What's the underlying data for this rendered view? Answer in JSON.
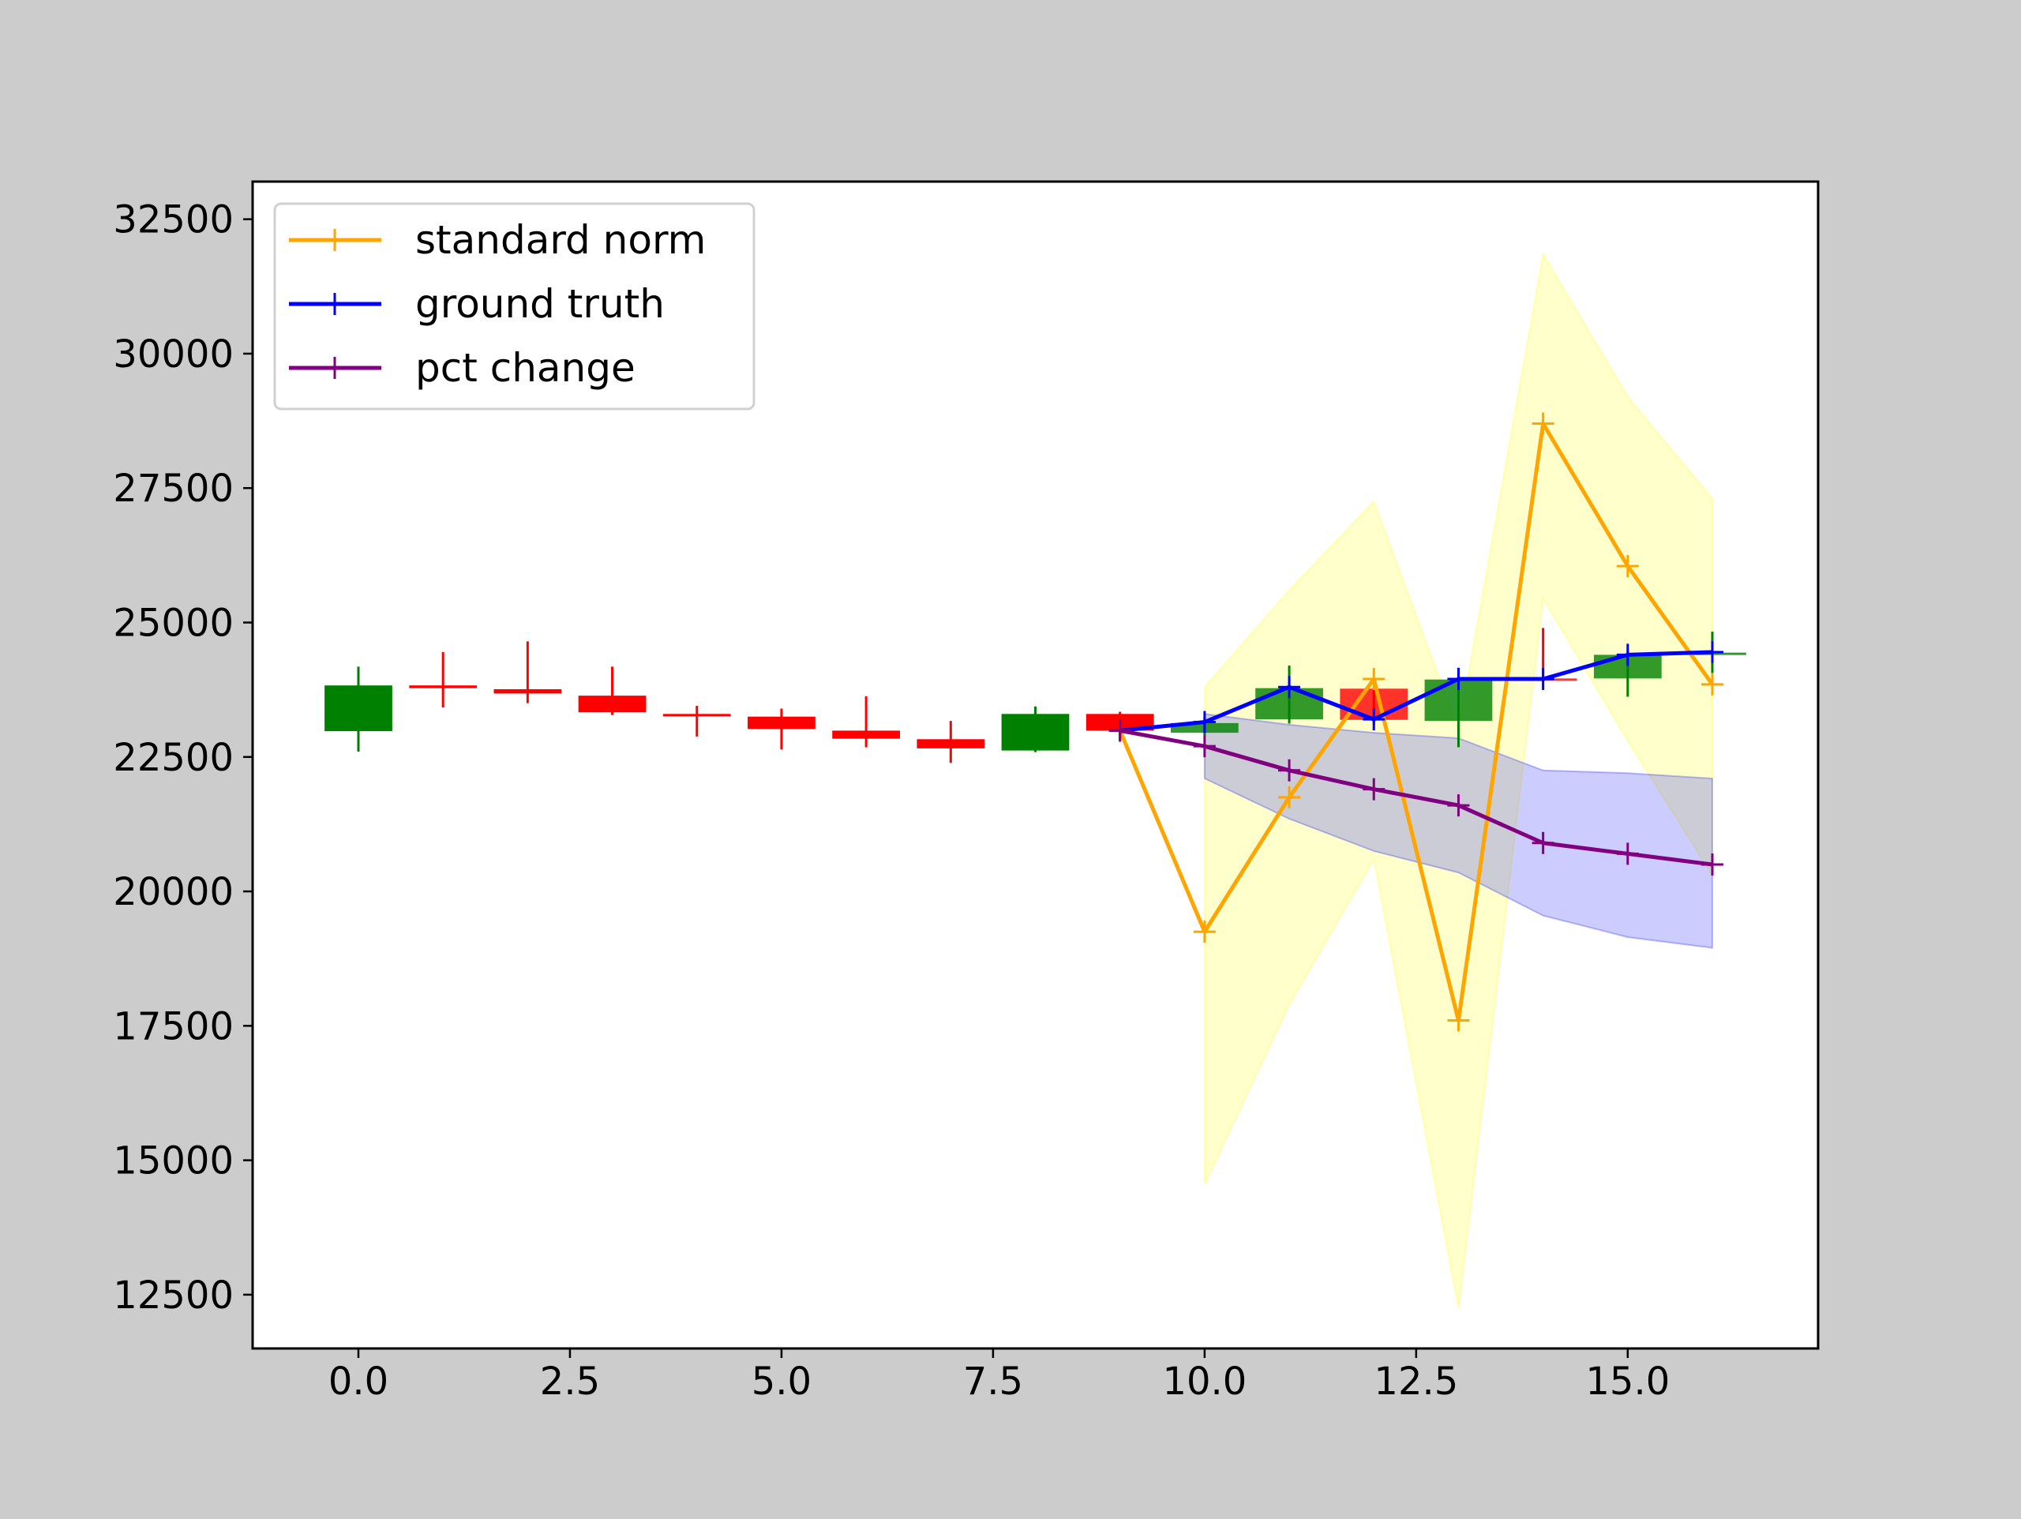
{
  "chart_data": {
    "type": "line",
    "title": "",
    "xlabel": "",
    "ylabel": "",
    "xlim": [
      -1.25,
      17.25
    ],
    "ylim": [
      11500,
      33200
    ],
    "grid": false,
    "legend_position": "top-left",
    "x_ticks": [
      {
        "value": 0.0,
        "label": "0.0"
      },
      {
        "value": 2.5,
        "label": "2.5"
      },
      {
        "value": 5.0,
        "label": "5.0"
      },
      {
        "value": 7.5,
        "label": "7.5"
      },
      {
        "value": 10.0,
        "label": "10.0"
      },
      {
        "value": 12.5,
        "label": "12.5"
      },
      {
        "value": 15.0,
        "label": "15.0"
      }
    ],
    "y_ticks": [
      {
        "value": 12500,
        "label": "12500"
      },
      {
        "value": 15000,
        "label": "15000"
      },
      {
        "value": 17500,
        "label": "17500"
      },
      {
        "value": 20000,
        "label": "20000"
      },
      {
        "value": 22500,
        "label": "22500"
      },
      {
        "value": 25000,
        "label": "25000"
      },
      {
        "value": 27500,
        "label": "27500"
      },
      {
        "value": 30000,
        "label": "30000"
      },
      {
        "value": 32500,
        "label": "32500"
      }
    ],
    "candlesticks": [
      {
        "x": 0,
        "open": 22980,
        "close": 23830,
        "high": 24180,
        "low": 22600
      },
      {
        "x": 1,
        "open": 23830,
        "close": 23780,
        "high": 24450,
        "low": 23420
      },
      {
        "x": 2,
        "open": 23760,
        "close": 23680,
        "high": 24650,
        "low": 23500
      },
      {
        "x": 3,
        "open": 23640,
        "close": 23330,
        "high": 24180,
        "low": 23280
      },
      {
        "x": 4,
        "open": 23300,
        "close": 23280,
        "high": 23450,
        "low": 22880
      },
      {
        "x": 5,
        "open": 23250,
        "close": 23020,
        "high": 23400,
        "low": 22640
      },
      {
        "x": 6,
        "open": 22990,
        "close": 22840,
        "high": 23630,
        "low": 22680
      },
      {
        "x": 7,
        "open": 22830,
        "close": 22660,
        "high": 23170,
        "low": 22390
      },
      {
        "x": 8,
        "open": 22620,
        "close": 23300,
        "high": 23440,
        "low": 22590
      },
      {
        "x": 9,
        "open": 23300,
        "close": 22990,
        "high": 23340,
        "low": 22900
      },
      {
        "x": 10,
        "open": 22950,
        "close": 23130,
        "high": 23240,
        "low": 22900
      },
      {
        "x": 11,
        "open": 23200,
        "close": 23780,
        "high": 24200,
        "low": 23120
      },
      {
        "x": 12,
        "open": 23770,
        "close": 23190,
        "high": 23800,
        "low": 23100
      },
      {
        "x": 13,
        "open": 23170,
        "close": 23940,
        "high": 24160,
        "low": 22680
      },
      {
        "x": 14,
        "open": 23960,
        "close": 23950,
        "high": 24900,
        "low": 23900
      },
      {
        "x": 15,
        "open": 23960,
        "close": 24400,
        "high": 24480,
        "low": 23620
      },
      {
        "x": 16,
        "open": 24430,
        "close": 24440,
        "high": 24830,
        "low": 24060
      }
    ],
    "candle_colors": {
      "up": "#008000",
      "down": "#ff0000"
    },
    "bands": [
      {
        "series": "standard norm",
        "color": "#ffff00",
        "x": [
          10,
          11,
          12,
          13,
          14,
          15,
          16
        ],
        "lower": [
          14550,
          17900,
          20600,
          12250,
          25450,
          22800,
          20300
        ],
        "upper": [
          23800,
          25600,
          27250,
          23000,
          31850,
          29200,
          27300
        ]
      },
      {
        "series": "pct change",
        "color": "#0000ff",
        "x": [
          10,
          11,
          12,
          13,
          14,
          15,
          16
        ],
        "lower": [
          22100,
          21350,
          20750,
          20350,
          19550,
          19150,
          18950
        ],
        "upper": [
          23300,
          23100,
          22950,
          22850,
          22250,
          22200,
          22100
        ]
      }
    ],
    "series": [
      {
        "name": "standard norm",
        "color": "#ffa500",
        "x": [
          9,
          10,
          11,
          12,
          13,
          14,
          15,
          16
        ],
        "y": [
          22990,
          19250,
          21750,
          23950,
          17600,
          28700,
          26050,
          23850
        ]
      },
      {
        "name": "ground truth",
        "color": "#0000ff",
        "x": [
          9,
          10,
          11,
          12,
          13,
          14,
          15,
          16
        ],
        "y": [
          22990,
          23150,
          23800,
          23200,
          23950,
          23950,
          24400,
          24450
        ]
      },
      {
        "name": "pct change",
        "color": "#800080",
        "x": [
          9,
          10,
          11,
          12,
          13,
          14,
          15,
          16
        ],
        "y": [
          22990,
          22700,
          22250,
          21900,
          21600,
          20900,
          20700,
          20500
        ]
      }
    ]
  }
}
